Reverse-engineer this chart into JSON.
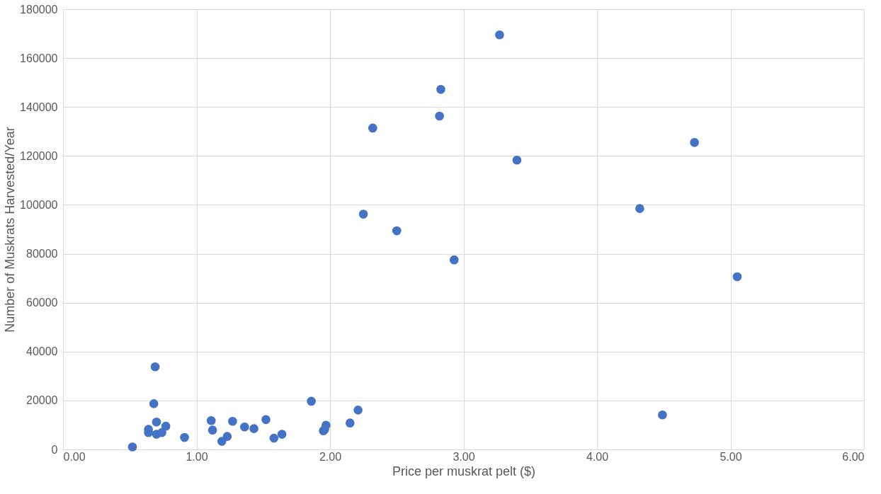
{
  "chart_data": {
    "type": "scatter",
    "xlabel": "Price per muskrat pelt ($)",
    "ylabel": "Number of Muskrats Harvested/Year",
    "x": [
      0.52,
      0.64,
      0.64,
      0.69,
      0.68,
      0.7,
      0.77,
      0.7,
      0.74,
      0.91,
      1.11,
      1.12,
      1.19,
      1.23,
      1.27,
      1.36,
      1.43,
      1.52,
      1.58,
      1.64,
      1.86,
      1.95,
      1.97,
      1.96,
      2.15,
      2.21,
      2.32,
      2.25,
      2.5,
      2.83,
      2.82,
      2.93,
      3.27,
      3.4,
      4.32,
      4.49,
      4.73,
      5.05
    ],
    "values": [
      1000,
      8200,
      6900,
      33800,
      18700,
      11200,
      9500,
      6200,
      6900,
      4900,
      11800,
      7900,
      3300,
      5300,
      11500,
      9200,
      8500,
      12200,
      4600,
      6200,
      19700,
      7600,
      9900,
      8200,
      10800,
      16100,
      131400,
      96200,
      89400,
      147200,
      136300,
      77500,
      169500,
      118300,
      98500,
      14100,
      125500,
      70600
    ],
    "color": "#4472c4",
    "marker": "circle",
    "grid": true,
    "xlim": [
      0,
      6
    ],
    "ylim": [
      0,
      180000
    ],
    "xticks": [
      {
        "value": 0,
        "label": "0.00"
      },
      {
        "value": 1,
        "label": "1.00"
      },
      {
        "value": 2,
        "label": "2.00"
      },
      {
        "value": 3,
        "label": "3.00"
      },
      {
        "value": 4,
        "label": "4.00"
      },
      {
        "value": 5,
        "label": "5.00"
      },
      {
        "value": 6,
        "label": "6.00"
      }
    ],
    "yticks": [
      0,
      20000,
      40000,
      60000,
      80000,
      100000,
      120000,
      140000,
      160000,
      180000
    ]
  }
}
